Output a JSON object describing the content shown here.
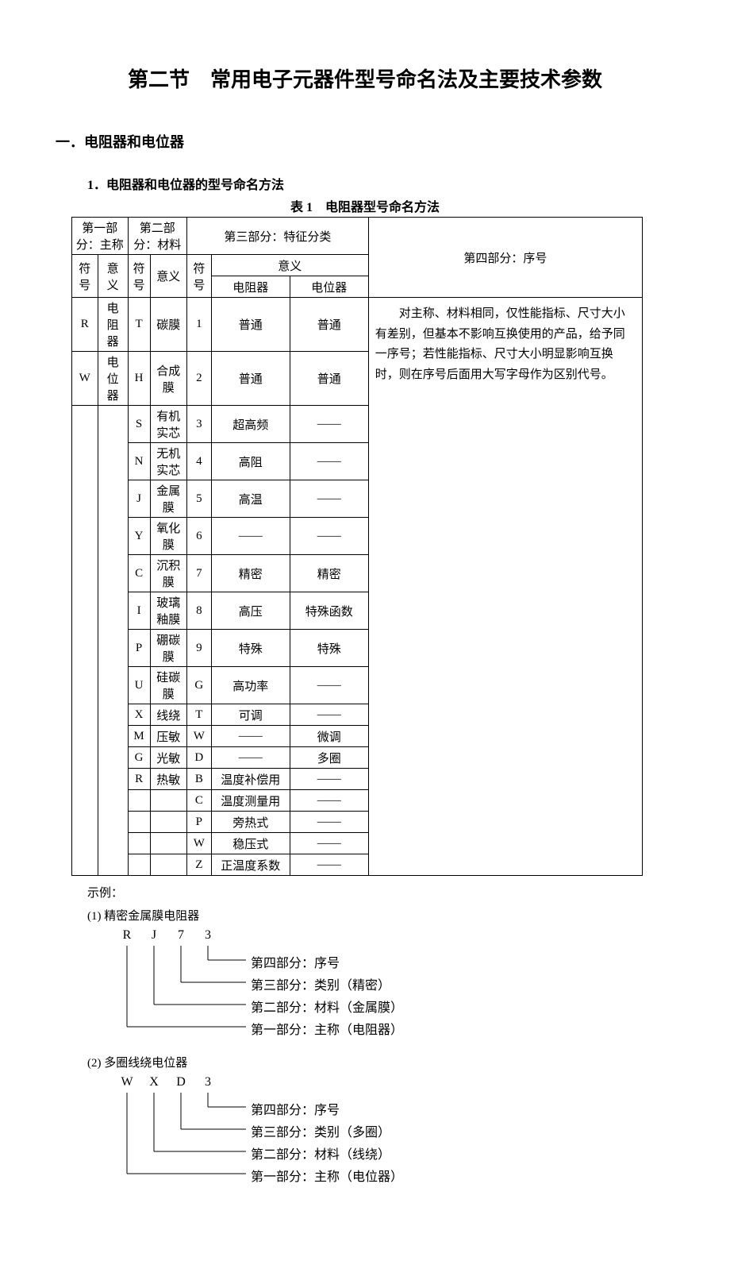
{
  "title": "第二节　常用电子元器件型号命名法及主要技术参数",
  "section1": {
    "heading": "一．电阻器和电位器",
    "sub1": "1．电阻器和电位器的型号命名方法",
    "tableTitle": "表 1　电阻器型号命名方法",
    "headers": {
      "part1": "第一部分：主称",
      "part2": "第二部分：材料",
      "part3": "第三部分：特征分类",
      "part4": "第四部分：序号",
      "symbol": "符号",
      "symbolV": "符\n号",
      "meaning": "意义",
      "resistor": "电阻器",
      "pot": "电位器"
    },
    "part1rows": [
      {
        "sym": "R",
        "mean": "电阻器"
      },
      {
        "sym": "W",
        "mean": "电位器"
      }
    ],
    "part2rows": [
      {
        "sym": "T",
        "mean": "碳膜"
      },
      {
        "sym": "H",
        "mean": "合成膜"
      },
      {
        "sym": "S",
        "mean": "有机实芯"
      },
      {
        "sym": "N",
        "mean": "无机实芯"
      },
      {
        "sym": "J",
        "mean": "金属膜"
      },
      {
        "sym": "Y",
        "mean": "氧化膜"
      },
      {
        "sym": "C",
        "mean": "沉积膜"
      },
      {
        "sym": "I",
        "mean": "玻璃釉膜"
      },
      {
        "sym": "P",
        "mean": "硼碳膜"
      },
      {
        "sym": "U",
        "mean": "硅碳膜"
      },
      {
        "sym": "X",
        "mean": "线绕"
      },
      {
        "sym": "M",
        "mean": "压敏"
      },
      {
        "sym": "G",
        "mean": "光敏"
      },
      {
        "sym": "R",
        "mean": "热敏"
      }
    ],
    "part3rows": [
      {
        "sym": "1",
        "res": "普通",
        "pot": "普通"
      },
      {
        "sym": "2",
        "res": "普通",
        "pot": "普通"
      },
      {
        "sym": "3",
        "res": "超高频",
        "pot": "——"
      },
      {
        "sym": "4",
        "res": "高阻",
        "pot": "——"
      },
      {
        "sym": "5",
        "res": "高温",
        "pot": "——"
      },
      {
        "sym": "6",
        "res": "——",
        "pot": "——"
      },
      {
        "sym": "7",
        "res": "精密",
        "pot": "精密"
      },
      {
        "sym": "8",
        "res": "高压",
        "pot": "特殊函数"
      },
      {
        "sym": "9",
        "res": "特殊",
        "pot": "特殊"
      },
      {
        "sym": "G",
        "res": "高功率",
        "pot": "——"
      },
      {
        "sym": "T",
        "res": "可调",
        "pot": "——"
      },
      {
        "sym": "W",
        "res": "——",
        "pot": "微调"
      },
      {
        "sym": "D",
        "res": "——",
        "pot": "多圈"
      },
      {
        "sym": "B",
        "res": "温度补偿用",
        "pot": "——"
      },
      {
        "sym": "C",
        "res": "温度测量用",
        "pot": "——"
      },
      {
        "sym": "P",
        "res": "旁热式",
        "pot": "——"
      },
      {
        "sym": "W",
        "res": "稳压式",
        "pot": "——"
      },
      {
        "sym": "Z",
        "res": "正温度系数",
        "pot": "——"
      }
    ],
    "part4text": "　　对主称、材料相同，仅性能指标、尺寸大小有差别，但基本不影响互换使用的产品，给予同一序号；若性能指标、尺寸大小明显影响互换时，则在序号后面用大写字母作为区别代号。"
  },
  "examples": {
    "label": "示例：",
    "ex1": {
      "title": "(1) 精密金属膜电阻器",
      "code": [
        "R",
        "J",
        "7",
        "3"
      ],
      "lines": [
        "第四部分：序号",
        "第三部分：类别（精密）",
        "第二部分：材料（金属膜）",
        "第一部分：主称（电阻器）"
      ]
    },
    "ex2": {
      "title": "(2) 多圈线绕电位器",
      "code": [
        "W",
        "X",
        "D",
        "3"
      ],
      "lines": [
        "第四部分：序号",
        "第三部分：类别（多圈）",
        "第二部分：材料（线绕）",
        "第一部分：主称（电位器）"
      ]
    }
  },
  "colors": {
    "text": "#000000",
    "border": "#000000",
    "bg": "#ffffff"
  }
}
